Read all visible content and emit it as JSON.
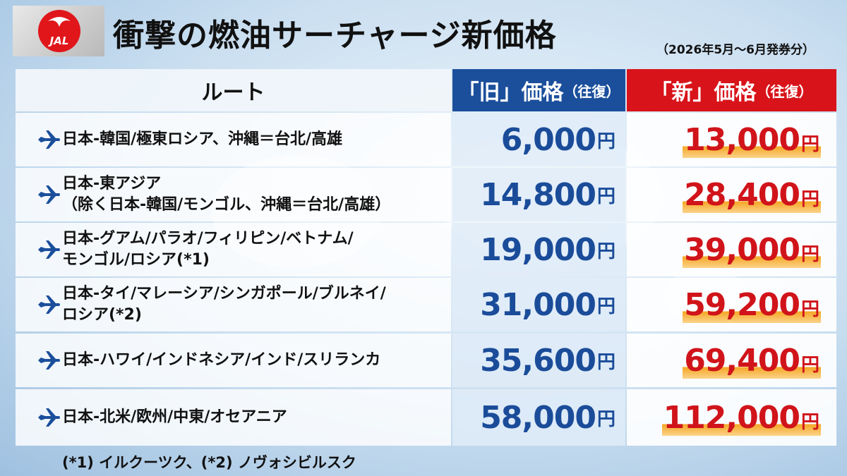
{
  "logo": {
    "text": "JAL"
  },
  "header": {
    "title": "衝撃の燃油サーチャージ新価格",
    "subtitle": "（2026年5月〜6月発券分）"
  },
  "table": {
    "columns": [
      {
        "label": "ルート"
      },
      {
        "label": "「旧」価格",
        "note": "（往復）"
      },
      {
        "label": "「新」価格",
        "note": "（往復）"
      }
    ],
    "unit": "円",
    "rows": [
      {
        "route": [
          "日本-韓国/極東ロシア、沖縄＝台北/高雄"
        ],
        "old": "6,000",
        "new": "13,000"
      },
      {
        "route": [
          "日本-東アジア",
          "（除く日本-韓国/モンゴル、沖縄＝台北/高雄）"
        ],
        "old": "14,800",
        "new": "28,400"
      },
      {
        "route": [
          "日本-グアム/パラオ/フィリピン/ベトナム/",
          "モンゴル/ロシア(*1)"
        ],
        "old": "19,000",
        "new": "39,000"
      },
      {
        "route": [
          "日本-タイ/マレーシア/シンガポール/ブルネイ/",
          "ロシア(*2)"
        ],
        "old": "31,000",
        "new": "59,200"
      },
      {
        "route": [
          "日本-ハワイ/インドネシア/インド/スリランカ"
        ],
        "old": "35,600",
        "new": "69,400"
      },
      {
        "route": [
          "日本-北米/欧州/中東/オセアニア"
        ],
        "old": "58,000",
        "new": "112,000"
      }
    ]
  },
  "footnote": "(*1) イルクーツク、(*2) ノヴォシビルスク"
}
